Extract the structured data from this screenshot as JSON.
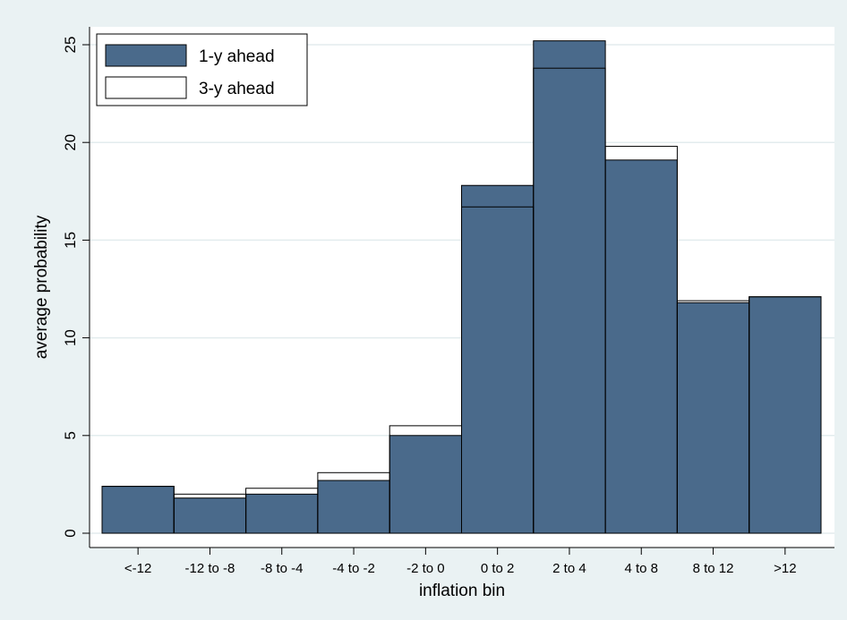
{
  "chart_data": {
    "type": "bar",
    "x_label": "inflation bin",
    "y_label": "average probability",
    "categories": [
      "<-12",
      "-12 to -8",
      "-8 to -4",
      "-4 to -2",
      "-2 to 0",
      "0 to 2",
      "2 to 4",
      "4 to 8",
      "8 to 12",
      ">12"
    ],
    "series": [
      {
        "name": "1-y ahead",
        "color": "#4a6a8b",
        "values": [
          2.4,
          1.8,
          2.0,
          2.7,
          5.0,
          17.8,
          25.2,
          19.1,
          11.8,
          12.1
        ]
      },
      {
        "name": "3-y ahead",
        "color": "#ffffff",
        "values": [
          2.4,
          2.0,
          2.3,
          3.1,
          5.5,
          16.7,
          23.8,
          19.8,
          11.9,
          12.1
        ]
      }
    ],
    "ylim": [
      0,
      25
    ],
    "yticks": [
      0,
      5,
      10,
      15,
      20,
      25
    ],
    "grid": true,
    "legend": "top-left"
  }
}
